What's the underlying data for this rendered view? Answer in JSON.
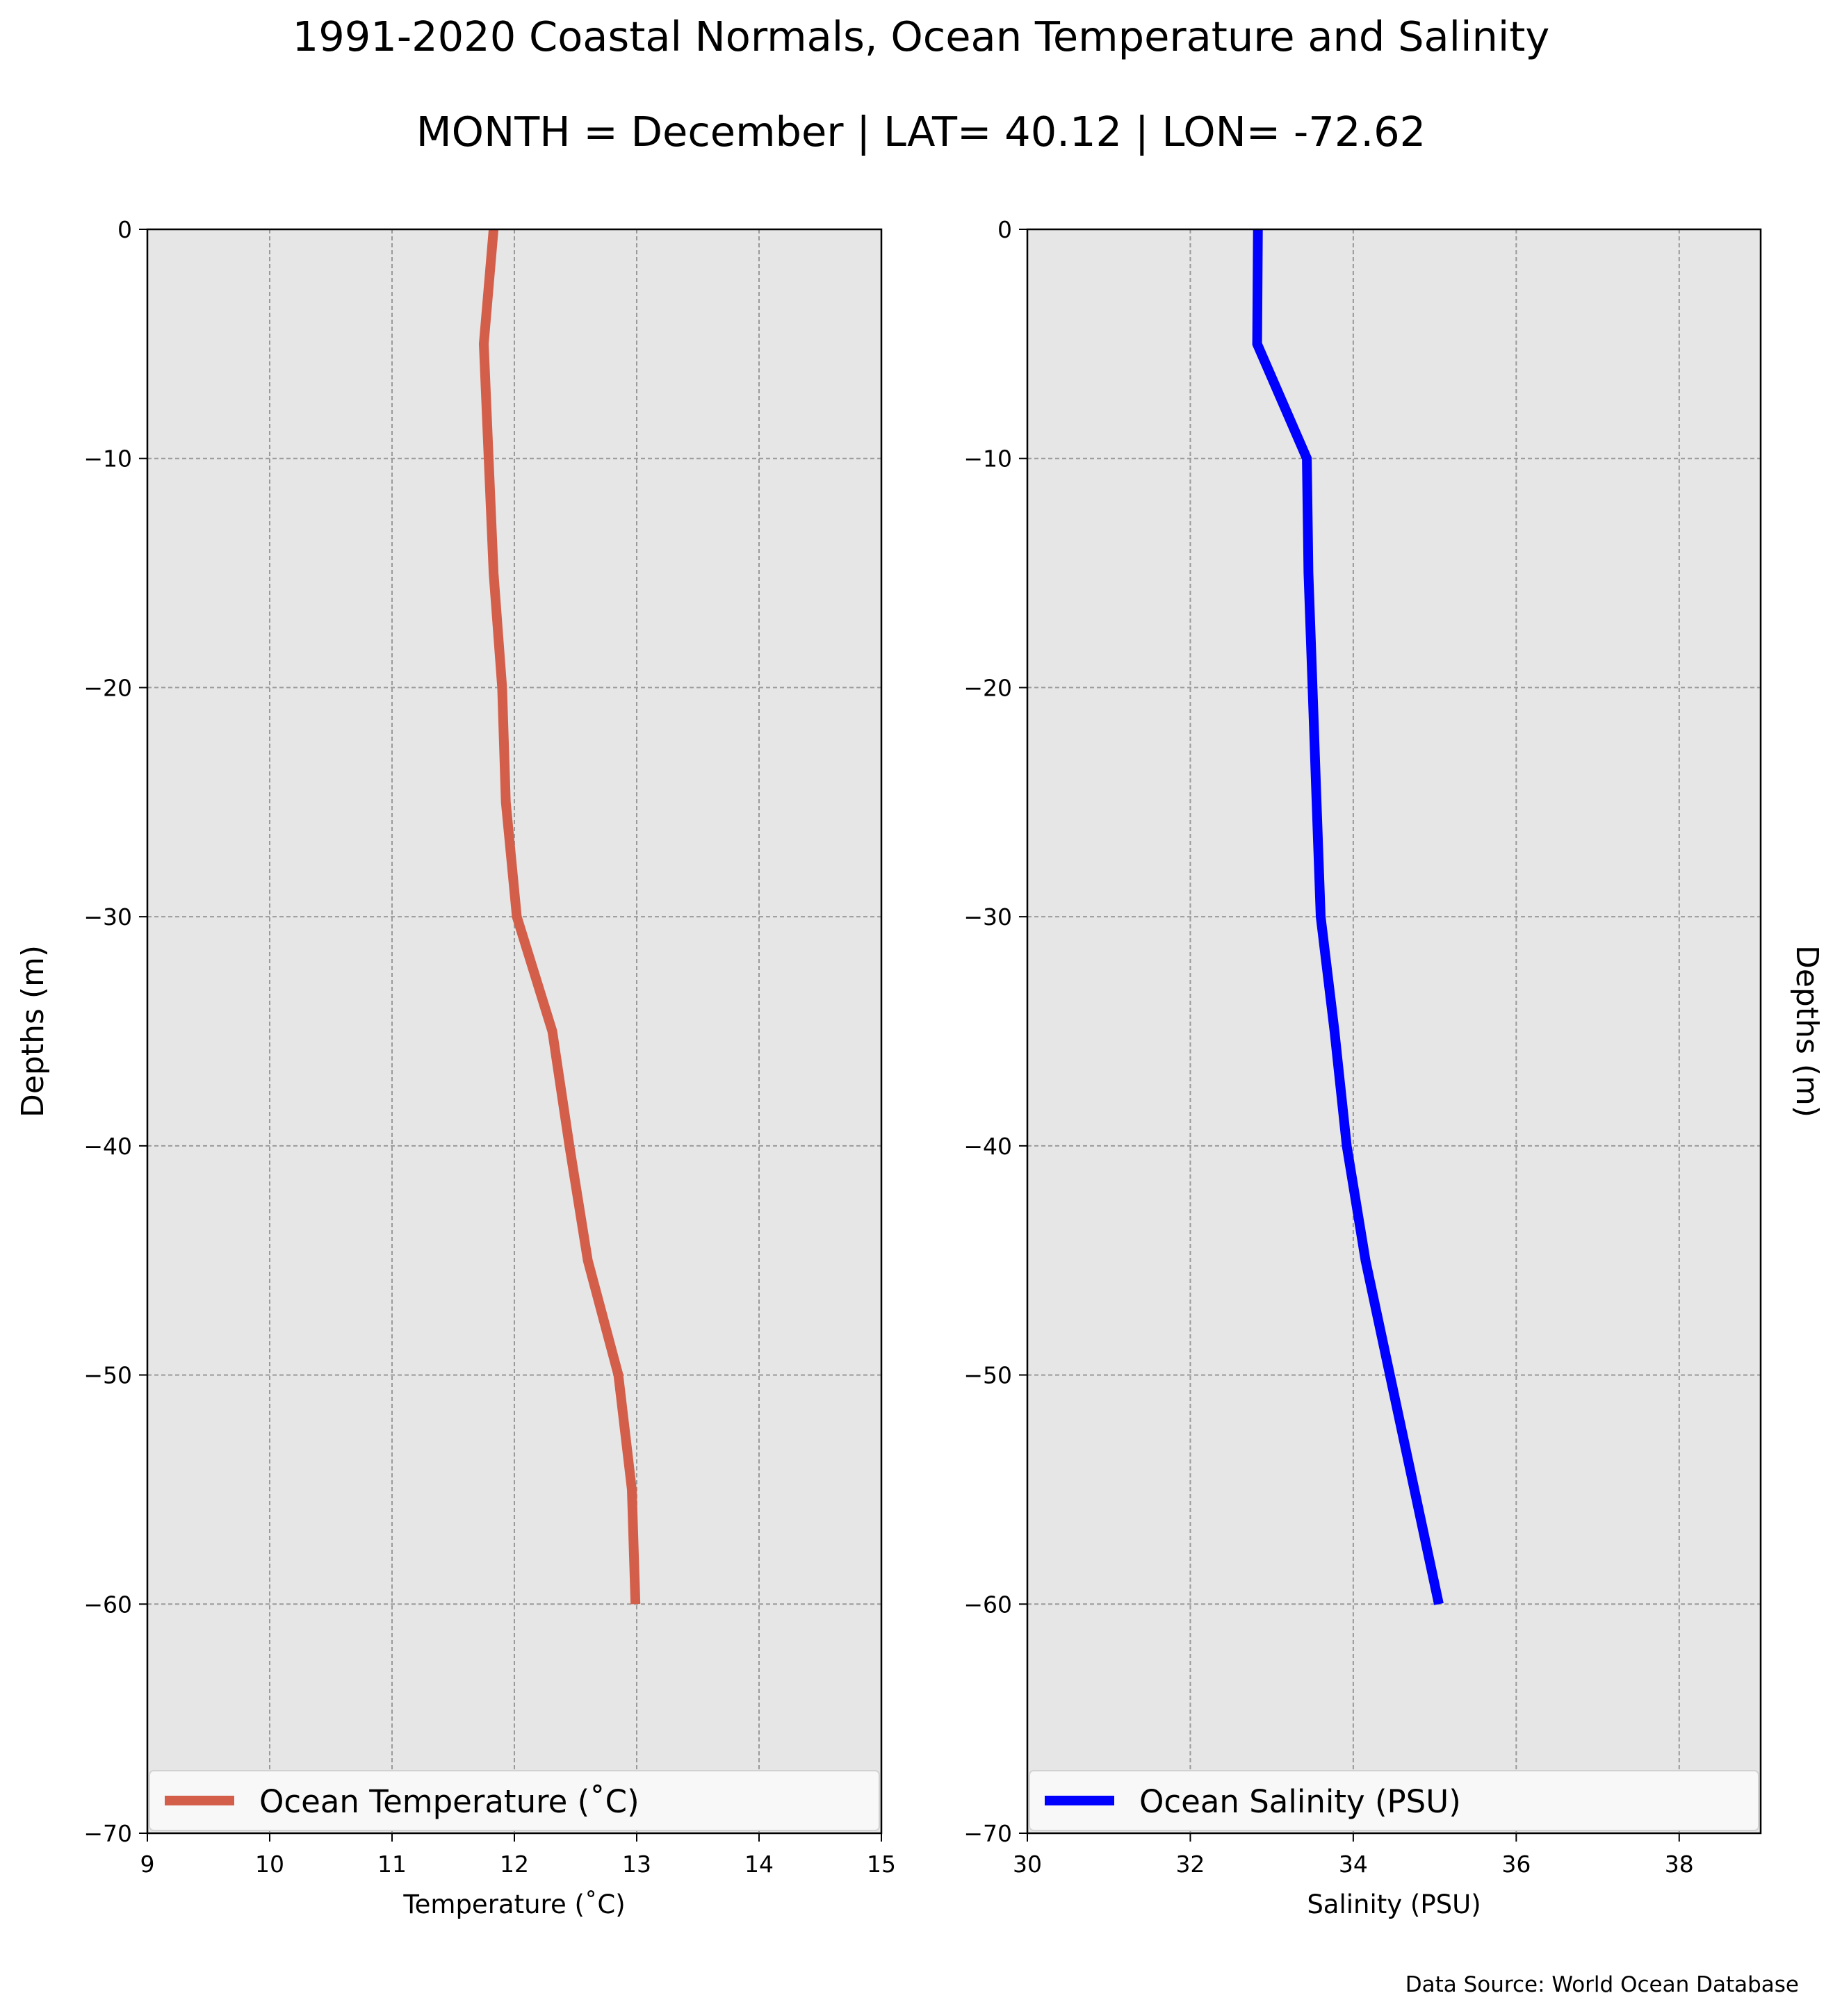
{
  "header": {
    "title": "1991-2020 Coastal Normals, Ocean Temperature and Salinity",
    "subtitle": "MONTH = December | LAT= 40.12 | LON= -72.62"
  },
  "footer": {
    "source": "Data Source: World Ocean Database"
  },
  "colors": {
    "panel_background": "#e6e6e6",
    "grid": "#9a9a9a",
    "temperature_line": "#d35f4b",
    "salinity_line": "#0000ff"
  },
  "chart_data": [
    {
      "type": "line",
      "xlabel": "Temperature ($^\\circ$C)",
      "xlabel_display": "Temperature (˚C)",
      "ylabel": "Depths (m)",
      "xlim": [
        9,
        15
      ],
      "ylim": [
        -70,
        0
      ],
      "xticks": [
        "9",
        "10",
        "11",
        "12",
        "13",
        "14",
        "15"
      ],
      "yticks": [
        "0",
        "−10",
        "−20",
        "−30",
        "−40",
        "−50",
        "−60",
        "−70"
      ],
      "grid": true,
      "legend_position": "bottom",
      "series": [
        {
          "name": "Ocean Temperature (˚C)",
          "color": "#d35f4b",
          "x": [
            11.83,
            11.75,
            11.79,
            11.83,
            11.9,
            11.93,
            12.02,
            12.31,
            12.45,
            12.6,
            12.85,
            12.96,
            12.99
          ],
          "y": [
            0,
            -5,
            -10,
            -15,
            -20,
            -25,
            -30,
            -35,
            -40,
            -45,
            -50,
            -55,
            -60
          ]
        }
      ]
    },
    {
      "type": "line",
      "xlabel": "Salinity (PSU)",
      "ylabel": "Depths (m)",
      "xlim": [
        30,
        39
      ],
      "ylim": [
        -70,
        0
      ],
      "xticks": [
        "30",
        "32",
        "34",
        "36",
        "38"
      ],
      "yticks": [
        "0",
        "−10",
        "−20",
        "−30",
        "−40",
        "−50",
        "−60",
        "−70"
      ],
      "grid": true,
      "legend_position": "bottom",
      "series": [
        {
          "name": "Ocean Salinity (PSU)",
          "color": "#0000ff",
          "x": [
            32.83,
            32.82,
            33.43,
            33.45,
            33.5,
            33.55,
            33.6,
            33.77,
            33.92,
            34.15,
            34.45,
            34.75,
            35.05
          ],
          "y": [
            0,
            -5,
            -10,
            -15,
            -20,
            -25,
            -30,
            -35,
            -40,
            -45,
            -50,
            -55,
            -60
          ]
        }
      ]
    }
  ]
}
